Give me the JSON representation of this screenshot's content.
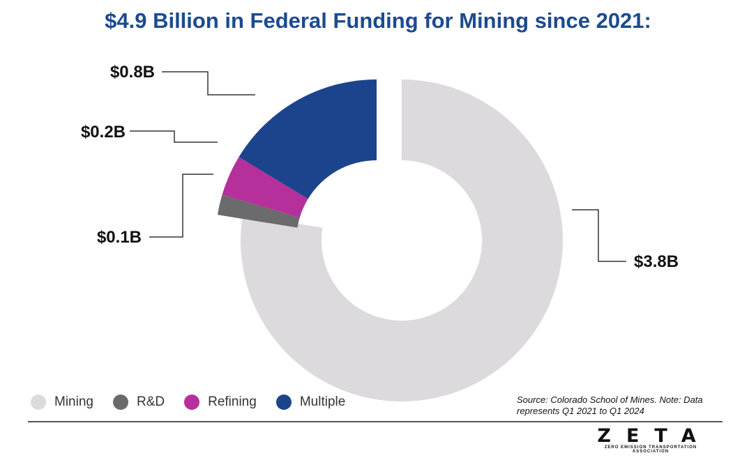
{
  "title": "$4.9 Billion in Federal Funding for Mining since 2021:",
  "chart_data": {
    "type": "pie",
    "variant": "donut",
    "title": "$4.9 Billion in Federal Funding for Mining since 2021:",
    "unit": "billion USD",
    "slices": [
      {
        "name": "Mining",
        "value": 3.8,
        "label": "$3.8B",
        "color": "#dcdadd"
      },
      {
        "name": "R&D",
        "value": 0.1,
        "label": "$0.1B",
        "color": "#6b6a6c"
      },
      {
        "name": "Refining",
        "value": 0.2,
        "label": "$0.2B",
        "color": "#b5309a"
      },
      {
        "name": "Multiple",
        "value": 0.8,
        "label": "$0.8B",
        "color": "#1c448c"
      }
    ]
  },
  "legend": [
    {
      "name": "Mining",
      "color": "#dcdadd"
    },
    {
      "name": "R&D",
      "color": "#6b6a6c"
    },
    {
      "name": "Refining",
      "color": "#b5309a"
    },
    {
      "name": "Multiple",
      "color": "#1c448c"
    }
  ],
  "source": "Source: Colorado School of Mines. Note: Data represents Q1 2021 to Q1 2024",
  "logo": {
    "word": "ZETA",
    "tagline": "ZERO EMISSION TRANSPORTATION ASSOCIATION"
  }
}
